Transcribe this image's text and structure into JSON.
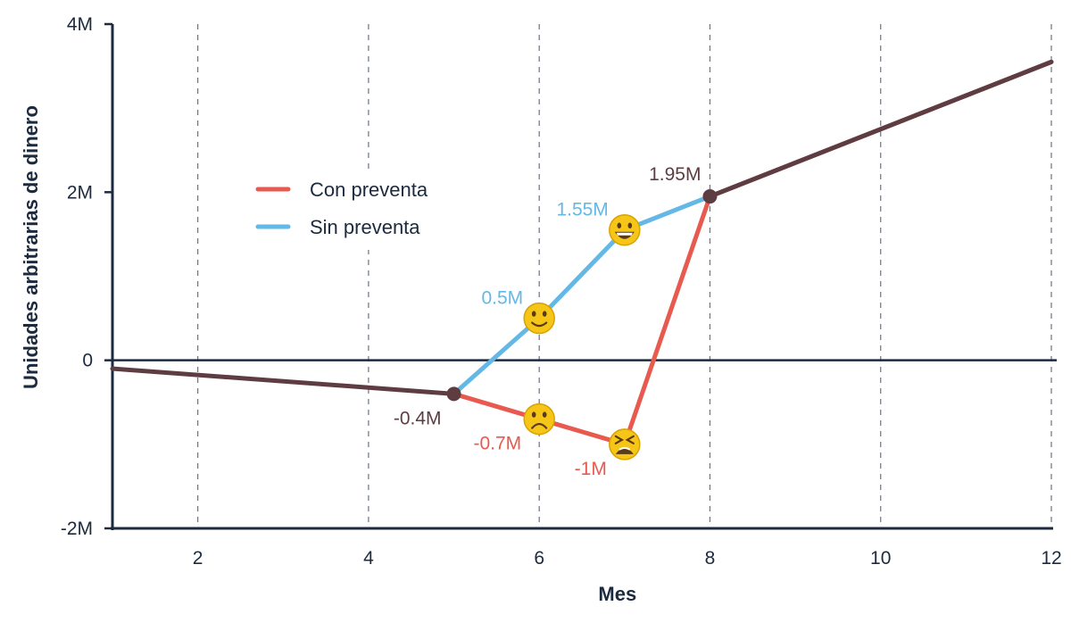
{
  "chart_data": {
    "type": "line",
    "title": "",
    "xlabel": "Mes",
    "ylabel": "Unidades arbitrarias de dinero",
    "xlim": [
      1,
      12
    ],
    "ylim": [
      -2,
      4
    ],
    "x_ticks": [
      2,
      4,
      6,
      8,
      10,
      12
    ],
    "x_tick_labels": [
      "2",
      "4",
      "6",
      "8",
      "10",
      "12"
    ],
    "y_ticks": [
      -2,
      0,
      2,
      4
    ],
    "y_tick_labels": [
      "-2M",
      "0",
      "2M",
      "4M"
    ],
    "grid": {
      "vertical_dashed": true,
      "horizontal": false
    },
    "zero_line": true,
    "legend": {
      "position": "upper-left-inside",
      "entries": [
        "Con preventa",
        "Sin preventa"
      ]
    },
    "series": [
      {
        "name": "Con preventa",
        "color": "#e85a4f",
        "x": [
          1,
          5,
          6,
          7,
          8,
          12
        ],
        "values": [
          -0.1,
          -0.4,
          -0.7,
          -1.0,
          1.95,
          3.55
        ]
      },
      {
        "name": "Sin preventa",
        "color": "#64b8e6",
        "x": [
          1,
          5,
          6,
          7,
          8,
          12
        ],
        "values": [
          -0.1,
          -0.4,
          0.5,
          1.55,
          1.95,
          3.55
        ]
      }
    ],
    "shared_segments": {
      "color": "#5e3d42",
      "segments": [
        [
          1,
          -0.1,
          5,
          -0.4
        ],
        [
          8,
          1.95,
          12,
          3.55
        ]
      ]
    },
    "annotations": [
      {
        "text": "-0.4M",
        "x": 5,
        "y": -0.4,
        "color": "#5e3d42",
        "marker": "dot"
      },
      {
        "text": "1.95M",
        "x": 8,
        "y": 1.95,
        "color": "#5e3d42",
        "marker": "dot"
      },
      {
        "text": "0.5M",
        "x": 6,
        "y": 0.5,
        "color": "#64b8e6",
        "marker": "emoji",
        "emoji": "slightly-smiling-face"
      },
      {
        "text": "1.55M",
        "x": 7,
        "y": 1.55,
        "color": "#64b8e6",
        "marker": "emoji",
        "emoji": "grinning-face"
      },
      {
        "text": "-0.7M",
        "x": 6,
        "y": -0.7,
        "color": "#e85a4f",
        "marker": "emoji",
        "emoji": "frowning-face"
      },
      {
        "text": "-1M",
        "x": 7,
        "y": -1.0,
        "color": "#e85a4f",
        "marker": "emoji",
        "emoji": "tired-face"
      }
    ]
  },
  "colors": {
    "axis": "#1c2a3f",
    "grid": "#6b7280",
    "con": "#e85a4f",
    "sin": "#64b8e6",
    "shared": "#5e3d42",
    "emoji_face": "#f5c518",
    "emoji_feature": "#5b3a1a"
  }
}
